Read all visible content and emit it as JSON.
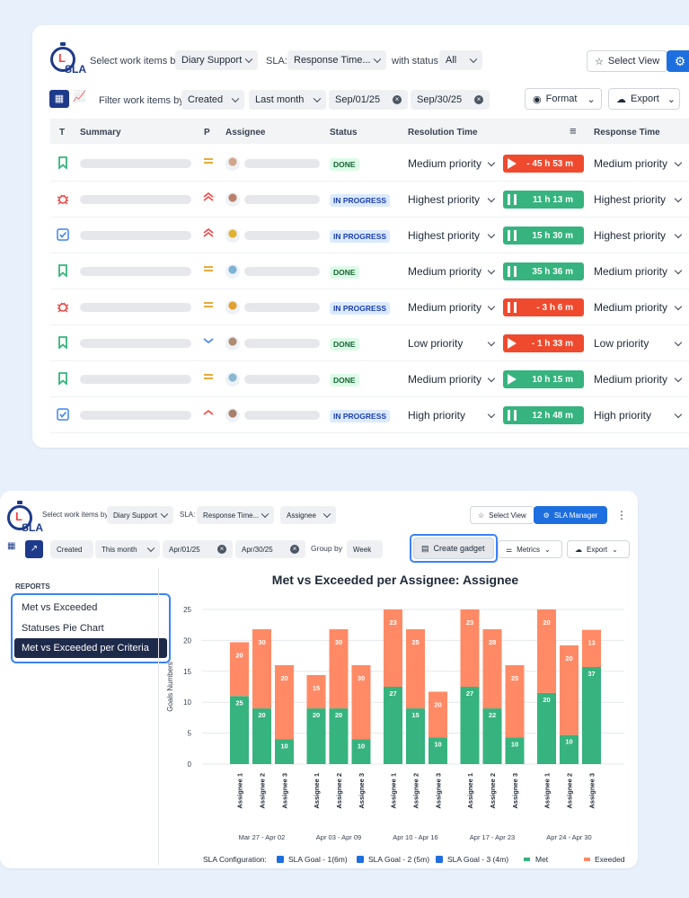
{
  "panel1": {
    "logo_text": "SLA",
    "select_label": "Select work items by:",
    "select_value": "Diary Support",
    "sla_label": "SLA:",
    "sla_value": "Response Time...",
    "status_label": "with status:",
    "status_value": "All",
    "select_view": "Select View",
    "filter_label": "Filter work items by:",
    "filter_field": "Created",
    "filter_range": "Last month",
    "date_from": "Sep/01/25",
    "date_to": "Sep/30/25",
    "format_label": "Format",
    "export_label": "Export",
    "columns": [
      "T",
      "Summary",
      "P",
      "Assignee",
      "Status",
      "Resolution Time",
      "Response Time"
    ],
    "rows": [
      {
        "type": "story",
        "prio": "medium",
        "status": "DONE",
        "resolution": "Medium priority",
        "timer": "- 45 h 53 m",
        "timer_color": "red",
        "timer_icon": "play",
        "response": "Medium priority",
        "avatar": "#d1a68a"
      },
      {
        "type": "bug",
        "prio": "highest",
        "status": "IN PROGRESS",
        "resolution": "Highest priority",
        "timer": "11 h 13 m",
        "timer_color": "green",
        "timer_icon": "pause",
        "response": "Highest priority",
        "avatar": "#b9826a"
      },
      {
        "type": "task",
        "prio": "highest",
        "status": "IN PROGRESS",
        "resolution": "Highest priority",
        "timer": "15 h 30 m",
        "timer_color": "green",
        "timer_icon": "pause",
        "response": "Highest priority",
        "avatar": "#e0b030"
      },
      {
        "type": "story",
        "prio": "medium",
        "status": "DONE",
        "resolution": "Medium priority",
        "timer": "35 h 36 m",
        "timer_color": "green",
        "timer_icon": "pause",
        "response": "Medium priority",
        "avatar": "#7ab3d6"
      },
      {
        "type": "bug",
        "prio": "medium",
        "status": "IN PROGRESS",
        "resolution": "Medium priority",
        "timer": "- 3 h 6 m",
        "timer_color": "red",
        "timer_icon": "pause",
        "response": "Medium priority",
        "avatar": "#e0a030"
      },
      {
        "type": "story",
        "prio": "low",
        "status": "DONE",
        "resolution": "Low priority",
        "timer": "- 1 h 33 m",
        "timer_color": "red",
        "timer_icon": "play",
        "response": "Low priority",
        "avatar": "#b08c70"
      },
      {
        "type": "story",
        "prio": "medium",
        "status": "DONE",
        "resolution": "Medium priority",
        "timer": "10 h 15 m",
        "timer_color": "green",
        "timer_icon": "play",
        "response": "Medium priority",
        "avatar": "#8ab8d0"
      },
      {
        "type": "task",
        "prio": "high",
        "status": "IN PROGRESS",
        "resolution": "High priority",
        "timer": "12 h 48 m",
        "timer_color": "green",
        "timer_icon": "pause",
        "response": "High priority",
        "avatar": "#a8806a"
      }
    ]
  },
  "panel2": {
    "logo_text": "SLA",
    "select_label": "Select work items by:",
    "select_value": "Diary Support",
    "sla_label": "SLA:",
    "sla_value": "Response Time...",
    "group_value": "Assignee",
    "select_view": "Select View",
    "sla_manager": "SLA Manager",
    "filter_field": "Created",
    "filter_range": "This month",
    "date_from": "Apr/01/25",
    "date_to": "Apr/30/25",
    "group_by_label": "Group by",
    "group_by_value": "Week",
    "create_gadget": "Create gadget",
    "metrics": "Metrics",
    "export": "Export",
    "reports_title": "REPORTS",
    "reports": [
      "Met vs Exceeded",
      "Statuses Pie Chart",
      "Met vs Exceeded per Criteria"
    ]
  },
  "chart_data": {
    "type": "bar",
    "title": "Met vs Exceeded per Assignee: Assignee",
    "ylabel": "Goals Numbers",
    "ylim": [
      0,
      25
    ],
    "yticks": [
      0,
      5,
      10,
      15,
      20,
      25
    ],
    "groups": [
      "Mar 27 - Apr 02",
      "Apr 03 - Apr 09",
      "Apr 10 - Apr 16",
      "Apr 17 - Apr 23",
      "Apr 24 - Apr 30"
    ],
    "categories": [
      "Assignee 1",
      "Assignee 2",
      "Assignee 3"
    ],
    "series": [
      {
        "name": "Met",
        "color": "#36b37e",
        "values": [
          [
            11,
            9,
            4
          ],
          [
            9,
            9,
            4
          ],
          [
            12.5,
            9,
            4.3
          ],
          [
            12.5,
            9,
            4.3
          ],
          [
            11.5,
            4.7,
            15.7
          ]
        ],
        "labels": [
          [
            25,
            20,
            10
          ],
          [
            20,
            20,
            10
          ],
          [
            27,
            15,
            10
          ],
          [
            27,
            22,
            10
          ],
          [
            20,
            10,
            37
          ]
        ]
      },
      {
        "name": "Exeeded",
        "color": "#ff8a65",
        "values": [
          [
            8.7,
            12.8,
            12
          ],
          [
            5.4,
            12.8,
            12
          ],
          [
            12.5,
            12.8,
            7.4
          ],
          [
            12.5,
            12.8,
            11.7
          ],
          [
            13.5,
            14.5,
            6
          ]
        ],
        "labels": [
          [
            20,
            30,
            20
          ],
          [
            15,
            30,
            30
          ],
          [
            23,
            25,
            20
          ],
          [
            23,
            28,
            25
          ],
          [
            20,
            20,
            13
          ]
        ]
      }
    ],
    "legend_title": "SLA Configuration:",
    "legend_checks": [
      "SLA Goal - 1(6m)",
      "SLA Goal - 2 (5m)",
      "SLA Goal - 3 (4m)"
    ]
  }
}
